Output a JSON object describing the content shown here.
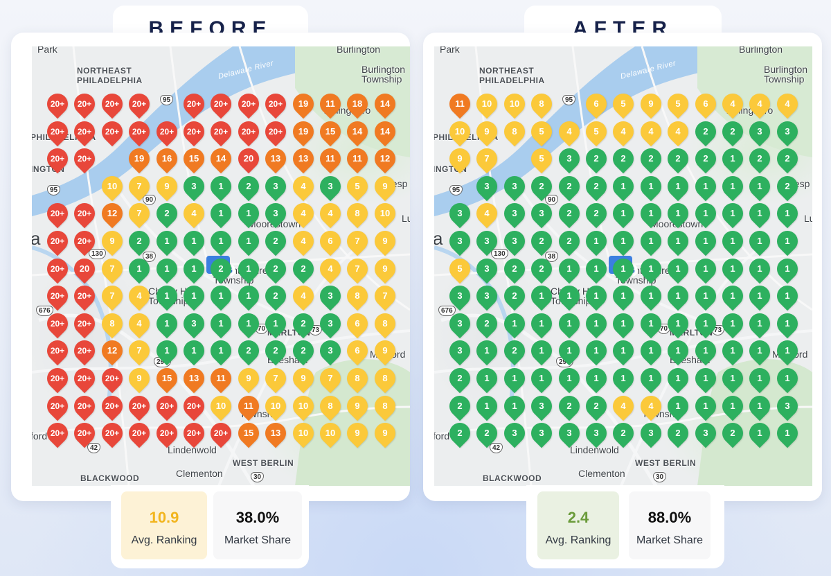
{
  "colors": {
    "red": "#e8473a",
    "orange": "#f07a22",
    "yellow": "#fbc93a",
    "green": "#2db05f",
    "title": "#17224a",
    "avg_before": "#f2b51e",
    "avg_after": "#6a9b3a"
  },
  "panels": [
    {
      "title": "BEFORE",
      "map_labels": {
        "top_left": "Park",
        "top_right": "Burlington",
        "ne_philly": "NORTHEAST\nPHILADELPHIA",
        "burlington_twp": "Burlington\nTownship",
        "river": "Delaware River",
        "willingboro": "Willingboro",
        "willing": "Willi",
        "phila": "PHILADELPHIA",
        "ington": "INGTON",
        "moorestown": "Moorestown",
        "mt_laurel": "Mount Laurel\nTownship",
        "cherry_hill": "Cherry Hill\nTownship",
        "marlton": "MARLTON",
        "evesham": "Evesham",
        "medford": "Medford",
        "voorhees_twp": "Township",
        "lindenwold": "Lindenwold",
        "west_berlin": "WEST BERLIN",
        "clementon": "Clementon",
        "blackwood": "BLACKWOOD",
        "ford": "ford",
        "big_a": "a",
        "lu": "Lu",
        "nesp": "nesp",
        "ington_right": "ngton",
        "rt_95": "95",
        "rt_90": "90",
        "rt_38": "38",
        "rt_130": "130",
        "rt_70": "70",
        "rt_295": "295",
        "rt_676": "676",
        "rt_42": "42",
        "rt_30": "30",
        "rt_73": "73"
      },
      "grid": [
        [
          "20+",
          "20+",
          "20+",
          "20+",
          "",
          "20+",
          "20+",
          "20+",
          "20+",
          "19",
          "11",
          "18",
          "14"
        ],
        [
          "20+",
          "20+",
          "20+",
          "20+",
          "20+",
          "20+",
          "20+",
          "20+",
          "20+",
          "19",
          "15",
          "14",
          "14"
        ],
        [
          "20+",
          "20+",
          "",
          "19",
          "16",
          "15",
          "14",
          "20",
          "13",
          "13",
          "11",
          "11",
          "12"
        ],
        [
          "",
          "",
          "10",
          "7",
          "9",
          "3",
          "1",
          "2",
          "3",
          "4",
          "3",
          "5",
          "9"
        ],
        [
          "20+",
          "20+",
          "12",
          "7",
          "2",
          "4",
          "1",
          "1",
          "3",
          "4",
          "4",
          "8",
          "10"
        ],
        [
          "20+",
          "20+",
          "9",
          "2",
          "1",
          "1",
          "1",
          "1",
          "2",
          "4",
          "6",
          "7",
          "9"
        ],
        [
          "20+",
          "20",
          "7",
          "1",
          "1",
          "1",
          "2",
          "1",
          "2",
          "2",
          "4",
          "7",
          "9"
        ],
        [
          "20+",
          "20+",
          "7",
          "4",
          "1",
          "1",
          "1",
          "1",
          "2",
          "4",
          "3",
          "8",
          "7"
        ],
        [
          "20+",
          "20+",
          "8",
          "4",
          "1",
          "3",
          "1",
          "1",
          "1",
          "2",
          "3",
          "6",
          "8"
        ],
        [
          "20+",
          "20+",
          "12",
          "7",
          "1",
          "1",
          "1",
          "2",
          "2",
          "2",
          "3",
          "6",
          "9"
        ],
        [
          "20+",
          "20+",
          "20+",
          "9",
          "15",
          "13",
          "11",
          "9",
          "7",
          "9",
          "7",
          "8",
          "8"
        ],
        [
          "20+",
          "20+",
          "20+",
          "20+",
          "20+",
          "20+",
          "10",
          "11",
          "10",
          "10",
          "8",
          "9",
          "8"
        ],
        [
          "20+",
          "20+",
          "20+",
          "20+",
          "20+",
          "20+",
          "20+",
          "15",
          "13",
          "10",
          "10",
          "9",
          "9"
        ]
      ],
      "stats": {
        "avg_value": "10.9",
        "avg_label": "Avg. Ranking",
        "share_value": "38.0%",
        "share_label": "Market Share"
      }
    },
    {
      "title": "AFTER",
      "map_labels": {
        "top_left": "Park",
        "top_right": "Burlington",
        "ne_philly": "NORTHEAST\nPHILADELPHIA",
        "burlington_twp": "Burlington\nTownship",
        "river": "Delaware River",
        "willingboro": "Willingboro",
        "willing": "Willi",
        "phila": "PHILADELPHIA",
        "ington": "INGTON",
        "moorestown": "Moorestown",
        "mt_laurel": "Mount Laurel\nTownship",
        "cherry_hill": "Cherry Hill\nTownship",
        "marlton": "MARLTON",
        "evesham": "Evesham",
        "medford": "Medford",
        "voorhees_twp": "Township",
        "lindenwold": "Lindenwold",
        "west_berlin": "WEST BERLIN",
        "clementon": "Clementon",
        "blackwood": "BLACKWOOD",
        "ford": "ford",
        "big_a": "a",
        "lu": "Lu",
        "nesp": "nesp",
        "ington_right": "ngton",
        "rt_95": "95",
        "rt_90": "90",
        "rt_38": "38",
        "rt_130": "130",
        "rt_70": "70",
        "rt_295": "295",
        "rt_676": "676",
        "rt_42": "42",
        "rt_30": "30",
        "rt_73": "73"
      },
      "grid": [
        [
          "11",
          "10",
          "10",
          "8",
          "",
          "6",
          "5",
          "9",
          "5",
          "6",
          "4",
          "4",
          "4"
        ],
        [
          "10",
          "9",
          "8",
          "5",
          "4",
          "5",
          "4",
          "4",
          "4",
          "2",
          "2",
          "3",
          "3"
        ],
        [
          "9",
          "7",
          "",
          "5",
          "3",
          "2",
          "2",
          "2",
          "2",
          "2",
          "1",
          "2",
          "2"
        ],
        [
          "",
          "3",
          "3",
          "2",
          "2",
          "2",
          "1",
          "1",
          "1",
          "1",
          "1",
          "1",
          "2"
        ],
        [
          "3",
          "4",
          "3",
          "3",
          "2",
          "2",
          "1",
          "1",
          "1",
          "1",
          "1",
          "1",
          "1"
        ],
        [
          "3",
          "3",
          "3",
          "2",
          "2",
          "1",
          "1",
          "1",
          "1",
          "1",
          "1",
          "1",
          "1"
        ],
        [
          "5",
          "3",
          "2",
          "2",
          "1",
          "1",
          "1",
          "1",
          "1",
          "1",
          "1",
          "1",
          "1"
        ],
        [
          "3",
          "3",
          "2",
          "1",
          "1",
          "1",
          "1",
          "1",
          "1",
          "1",
          "1",
          "1",
          "1"
        ],
        [
          "3",
          "2",
          "1",
          "1",
          "1",
          "1",
          "1",
          "1",
          "1",
          "1",
          "1",
          "1",
          "1"
        ],
        [
          "3",
          "1",
          "2",
          "1",
          "1",
          "1",
          "1",
          "1",
          "1",
          "1",
          "1",
          "1",
          "1"
        ],
        [
          "2",
          "1",
          "1",
          "1",
          "1",
          "1",
          "1",
          "1",
          "1",
          "1",
          "1",
          "1",
          "1"
        ],
        [
          "2",
          "1",
          "1",
          "3",
          "2",
          "2",
          "4",
          "4",
          "1",
          "1",
          "1",
          "1",
          "3"
        ],
        [
          "2",
          "2",
          "3",
          "3",
          "3",
          "3",
          "2",
          "3",
          "2",
          "3",
          "2",
          "1",
          "1"
        ]
      ],
      "stats": {
        "avg_value": "2.4",
        "avg_label": "Avg. Ranking",
        "share_value": "88.0%",
        "share_label": "Market Share"
      }
    }
  ]
}
